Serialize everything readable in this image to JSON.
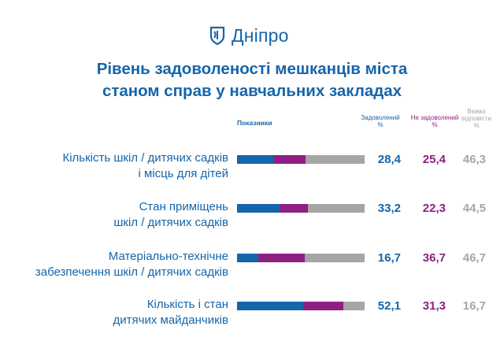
{
  "logo": {
    "text": "Дніпро",
    "icon": "shield-icon"
  },
  "title": {
    "line1": "Рівень задоволеності мешканців міста",
    "line2": "станом справ у навчальних закладах"
  },
  "headers": {
    "indicators": "Показники",
    "satisfied": [
      "Задоволений",
      "%"
    ],
    "unsatisfied": [
      "Не задоволений",
      "%"
    ],
    "hard_to_say": [
      "Важко",
      "відповісти",
      "%"
    ]
  },
  "colors": {
    "satisfied": "#1565ab",
    "unsatisfied": "#8e1f83",
    "hard_to_say": "#a6a6a6"
  },
  "chart_data": {
    "type": "bar",
    "stacked": true,
    "orientation": "horizontal",
    "categories": [
      [
        "Кількість шкіл / дитячих садків",
        "і місць для дітей"
      ],
      [
        "Стан приміщень",
        "шкіл / дитячих садків"
      ],
      [
        "Матеріально-технічне",
        "забезпечення шкіл / дитячих садків"
      ],
      [
        "Кількість і стан",
        "дитячих майданчиків"
      ]
    ],
    "series": [
      {
        "name": "Задоволений %",
        "values": [
          28.4,
          33.2,
          16.7,
          52.1
        ],
        "labels": [
          "28,4",
          "33,2",
          "16,7",
          "52,1"
        ]
      },
      {
        "name": "Не задоволений %",
        "values": [
          25.4,
          22.3,
          36.7,
          31.3
        ],
        "labels": [
          "25,4",
          "22,3",
          "36,7",
          "31,3"
        ]
      },
      {
        "name": "Важко відповісти %",
        "values": [
          46.3,
          44.5,
          46.7,
          16.7
        ],
        "labels": [
          "46,3",
          "44,5",
          "46,7",
          "16,7"
        ]
      }
    ]
  }
}
